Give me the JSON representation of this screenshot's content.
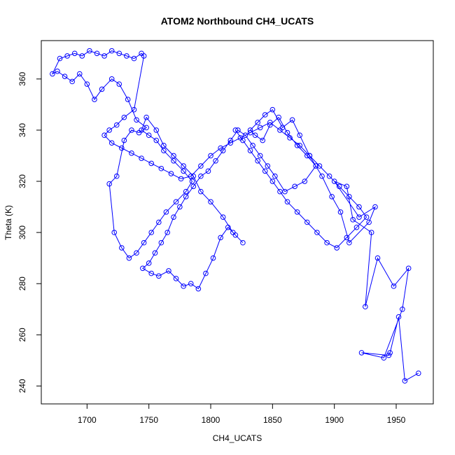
{
  "chart_data": {
    "type": "line",
    "title": "ATOM2 Northbound CH4_UCATS",
    "xlabel": "CH4_UCATS",
    "ylabel": "Theta (K)",
    "xlim": [
      1663,
      1980
    ],
    "ylim": [
      233,
      375
    ],
    "xticks": [
      1700,
      1750,
      1800,
      1850,
      1900,
      1950
    ],
    "yticks": [
      240,
      260,
      280,
      300,
      320,
      340,
      360
    ],
    "colors": {
      "series": "#0000ff",
      "axis": "#000000"
    },
    "marker": "open-circle",
    "grid": false,
    "series": [
      {
        "x": [
          1968,
          1957,
          1952,
          1945,
          1944,
          1922,
          1940,
          1955,
          1960,
          1948,
          1935,
          1925,
          1930,
          1915,
          1910,
          1900,
          1920,
          1933,
          1928,
          1912,
          1905,
          1898,
          1890,
          1880,
          1872,
          1866,
          1858,
          1850,
          1844,
          1838,
          1832,
          1836,
          1842,
          1848,
          1855,
          1862,
          1870,
          1878,
          1885,
          1876,
          1868,
          1860,
          1852,
          1846,
          1840,
          1834,
          1828,
          1822,
          1816,
          1810,
          1804,
          1798,
          1792,
          1786,
          1780,
          1775,
          1770,
          1765,
          1760,
          1755,
          1750,
          1745,
          1752,
          1758,
          1766,
          1772,
          1778,
          1784,
          1790,
          1796,
          1802,
          1808,
          1814,
          1820,
          1826,
          1818,
          1810,
          1800,
          1792,
          1786,
          1778,
          1770,
          1762,
          1756,
          1748,
          1744,
          1750,
          1756,
          1762,
          1770,
          1778,
          1785,
          1780,
          1772,
          1764,
          1758,
          1752,
          1746,
          1740,
          1734,
          1728,
          1722,
          1718,
          1724,
          1730,
          1736,
          1742,
          1748,
          1740,
          1733,
          1726,
          1720,
          1712,
          1706,
          1700,
          1694,
          1688,
          1682,
          1676,
          1672,
          1678,
          1684,
          1690,
          1696,
          1702,
          1708,
          1714,
          1720,
          1726,
          1732,
          1738,
          1744,
          1746,
          1738,
          1730,
          1724,
          1718,
          1714,
          1720,
          1728,
          1736,
          1744,
          1752,
          1760,
          1768,
          1776,
          1784,
          1792,
          1800,
          1808,
          1816,
          1824,
          1832,
          1840,
          1848,
          1856,
          1864,
          1872,
          1880,
          1888,
          1896,
          1904,
          1912,
          1920,
          1926,
          1918,
          1910,
          1902,
          1894,
          1886,
          1878,
          1870,
          1862,
          1856,
          1850,
          1844,
          1838,
          1832,
          1826,
          1820
        ],
        "y": [
          245,
          242,
          267,
          253,
          252,
          253,
          251,
          270,
          286,
          279,
          290,
          271,
          300,
          305,
          318,
          320,
          306,
          310,
          304,
          296,
          308,
          314,
          322,
          330,
          338,
          344,
          341,
          348,
          346,
          343,
          340,
          338,
          336,
          342,
          345,
          339,
          334,
          330,
          326,
          320,
          318,
          316,
          322,
          326,
          330,
          334,
          338,
          340,
          336,
          332,
          328,
          324,
          322,
          318,
          314,
          310,
          306,
          300,
          296,
          292,
          288,
          286,
          284,
          283,
          285,
          282,
          279,
          280,
          278,
          284,
          290,
          298,
          302,
          299,
          296,
          300,
          306,
          312,
          316,
          322,
          326,
          330,
          334,
          340,
          345,
          340,
          338,
          336,
          332,
          328,
          324,
          320,
          316,
          312,
          308,
          304,
          300,
          296,
          292,
          290,
          294,
          300,
          319,
          322,
          336,
          340,
          339,
          341,
          344,
          352,
          358,
          360,
          356,
          352,
          358,
          362,
          359,
          361,
          363,
          362,
          368,
          369,
          370,
          369,
          371,
          370,
          369,
          371,
          370,
          369,
          368,
          370,
          369,
          348,
          345,
          342,
          340,
          338,
          335,
          333,
          331,
          329,
          327,
          325,
          323,
          321,
          322,
          326,
          330,
          333,
          335,
          337,
          339,
          341,
          343,
          340,
          337,
          334,
          330,
          326,
          322,
          318,
          314,
          310,
          306,
          302,
          298,
          294,
          296,
          300,
          304,
          308,
          312,
          316,
          320,
          324,
          328,
          332,
          336,
          340
        ]
      }
    ]
  }
}
